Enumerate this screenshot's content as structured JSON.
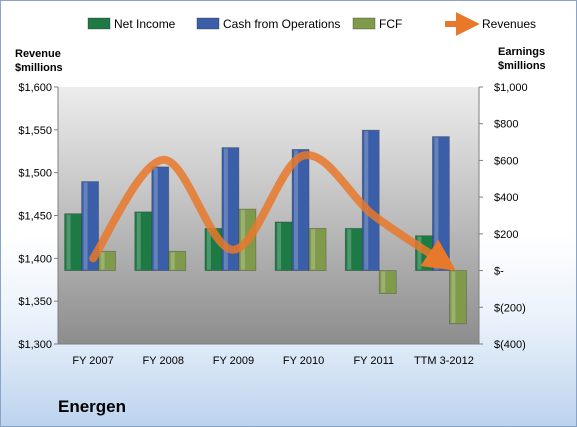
{
  "chart_data": {
    "type": "bar",
    "company": "Energen",
    "categories": [
      "FY 2007",
      "FY 2008",
      "FY 2009",
      "FY 2010",
      "FY 2011",
      "TTM 3-2012"
    ],
    "series": [
      {
        "name": "Net Income",
        "axis": "right",
        "kind": "bar",
        "color": "#1e7a45",
        "values": [
          310,
          320,
          230,
          265,
          230,
          190
        ]
      },
      {
        "name": "Cash from Operations",
        "axis": "right",
        "kind": "bar",
        "color": "#3a5fa8",
        "values": [
          485,
          565,
          670,
          660,
          765,
          730
        ]
      },
      {
        "name": "FCF",
        "axis": "right",
        "kind": "bar",
        "color": "#7f9a4a",
        "values": [
          105,
          105,
          335,
          230,
          -125,
          -290
        ]
      },
      {
        "name": "Revenues",
        "axis": "left",
        "kind": "line",
        "color": "#e8782a",
        "values": [
          1400,
          1515,
          1410,
          1520,
          1450,
          1395
        ]
      }
    ],
    "left_axis": {
      "title_line1": "Revenue",
      "title_line2": "$millions",
      "ylim": [
        1300,
        1600
      ],
      "ticks": [
        1300,
        1350,
        1400,
        1450,
        1500,
        1550,
        1600
      ],
      "tick_labels": [
        "$1,300",
        "$1,350",
        "$1,400",
        "$1,450",
        "$1,500",
        "$1,550",
        "$1,600"
      ]
    },
    "right_axis": {
      "title_line1": "Earnings",
      "title_line2": "$millions",
      "ylim": [
        -400,
        1000
      ],
      "ticks": [
        -400,
        -200,
        0,
        200,
        400,
        600,
        800,
        1000
      ],
      "tick_labels": [
        "$(400)",
        "$(200)",
        "$-",
        "$200",
        "$400",
        "$600",
        "$800",
        "$1,000"
      ]
    },
    "legend_position": "top",
    "grid": false
  }
}
